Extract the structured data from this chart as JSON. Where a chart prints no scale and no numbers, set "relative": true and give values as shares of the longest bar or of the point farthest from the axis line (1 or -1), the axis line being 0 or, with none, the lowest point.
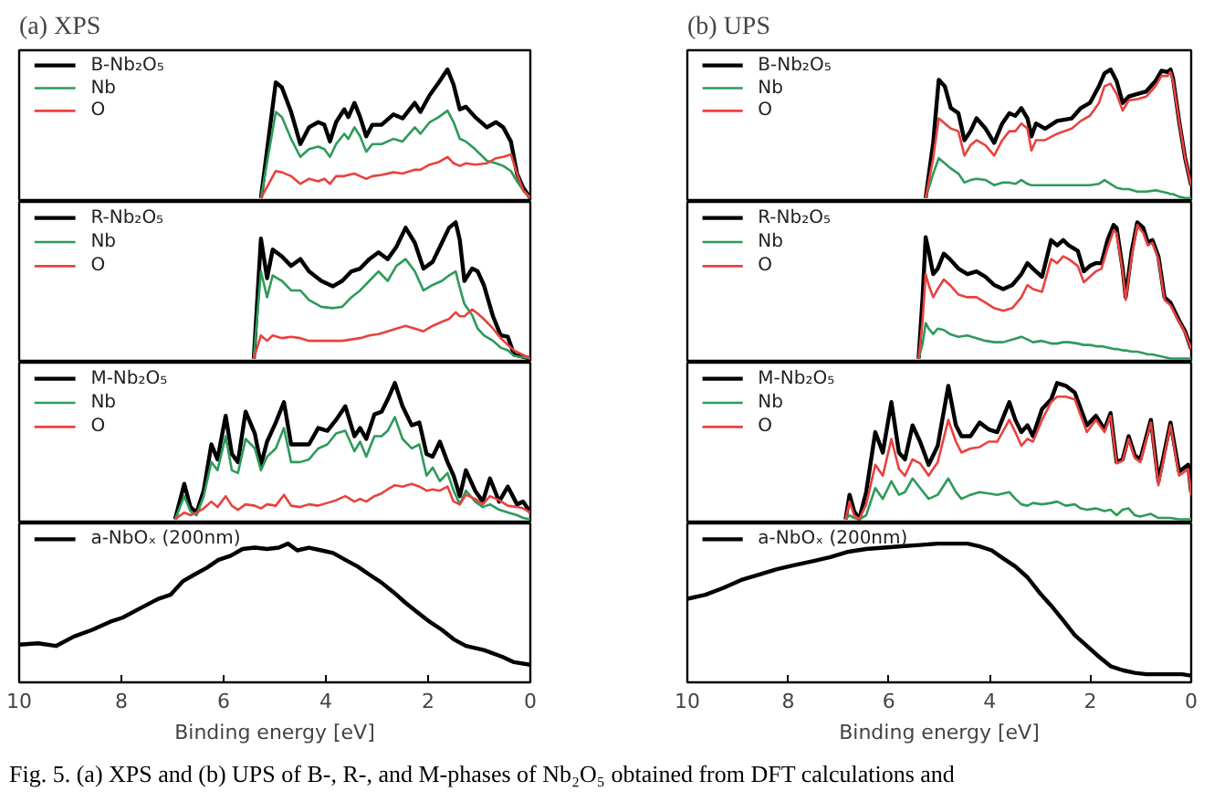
{
  "chart_data": [
    {
      "type": "line",
      "title": "(a) XPS",
      "relative": true,
      "xlim": [
        10,
        0
      ],
      "xticks": [
        0,
        2,
        4,
        6,
        8,
        10
      ],
      "tick_labels": false,
      "legend": "top left",
      "x": [
        5.27,
        4.98,
        4.86,
        4.68,
        4.5,
        4.33,
        4.15,
        4.03,
        3.92,
        3.8,
        3.64,
        3.56,
        3.44,
        3.33,
        3.21,
        3.09,
        2.91,
        2.68,
        2.5,
        2.26,
        2.15,
        1.97,
        1.79,
        1.62,
        1.5,
        1.38,
        1.26,
        1.08,
        0.85,
        0.67,
        0.53,
        0.38,
        0.26,
        0.14,
        0
      ],
      "series": [
        {
          "name": "B-Nb₂O₅",
          "color": "#000000",
          "values": [
            0,
            0.9,
            0.86,
            0.67,
            0.42,
            0.55,
            0.59,
            0.57,
            0.44,
            0.59,
            0.69,
            0.63,
            0.74,
            0.63,
            0.48,
            0.57,
            0.57,
            0.65,
            0.62,
            0.74,
            0.67,
            0.8,
            0.9,
            1,
            0.88,
            0.69,
            0.71,
            0.63,
            0.55,
            0.59,
            0.55,
            0.44,
            0.19,
            0.08,
            0
          ]
        },
        {
          "name": "Nb",
          "color": "#2e9a5a",
          "values": [
            0,
            0.67,
            0.63,
            0.46,
            0.32,
            0.38,
            0.4,
            0.38,
            0.32,
            0.42,
            0.5,
            0.46,
            0.55,
            0.48,
            0.36,
            0.42,
            0.42,
            0.46,
            0.44,
            0.55,
            0.5,
            0.59,
            0.63,
            0.68,
            0.59,
            0.46,
            0.44,
            0.38,
            0.29,
            0.27,
            0.25,
            0.21,
            0.13,
            0.06,
            0
          ]
        },
        {
          "name": "O",
          "color": "#e8423f",
          "values": [
            0,
            0.21,
            0.2,
            0.17,
            0.11,
            0.15,
            0.13,
            0.15,
            0.11,
            0.17,
            0.17,
            0.18,
            0.19,
            0.17,
            0.15,
            0.17,
            0.18,
            0.2,
            0.19,
            0.22,
            0.22,
            0.26,
            0.28,
            0.32,
            0.27,
            0.25,
            0.27,
            0.26,
            0.27,
            0.31,
            0.32,
            0.34,
            0.19,
            0.06,
            0
          ]
        }
      ]
    },
    {
      "type": "line",
      "title": "(b) UPS",
      "relative": true,
      "xlim": [
        10,
        0
      ],
      "xticks": [
        0,
        2,
        4,
        6,
        8,
        10
      ],
      "tick_labels": false,
      "legend": "top left",
      "x": [
        5.27,
        5.12,
        5.01,
        4.89,
        4.77,
        4.62,
        4.5,
        4.38,
        4.26,
        4.08,
        3.91,
        3.75,
        3.61,
        3.49,
        3.37,
        3.25,
        3.17,
        3.08,
        2.9,
        2.66,
        2.37,
        2.19,
        2.01,
        1.83,
        1.72,
        1.6,
        1.48,
        1.36,
        1.24,
        1.07,
        0.89,
        0.71,
        0.59,
        0.47,
        0.41,
        0.36,
        0.24,
        0.12,
        0
      ],
      "series": [
        {
          "name": "B-Nb₂O₅",
          "color": "#000000",
          "values": [
            0,
            0.43,
            0.92,
            0.87,
            0.7,
            0.66,
            0.45,
            0.52,
            0.62,
            0.54,
            0.43,
            0.58,
            0.66,
            0.64,
            0.7,
            0.62,
            0.48,
            0.58,
            0.54,
            0.6,
            0.62,
            0.7,
            0.74,
            0.87,
            0.97,
            1,
            0.91,
            0.74,
            0.79,
            0.81,
            0.83,
            0.91,
            0.99,
            0.98,
            1,
            0.93,
            0.6,
            0.31,
            0.1
          ]
        },
        {
          "name": "Nb",
          "color": "#2e9a5a",
          "values": [
            0,
            0.19,
            0.31,
            0.27,
            0.23,
            0.19,
            0.12,
            0.14,
            0.15,
            0.14,
            0.1,
            0.12,
            0.12,
            0.11,
            0.14,
            0.11,
            0.1,
            0.1,
            0.1,
            0.1,
            0.1,
            0.1,
            0.1,
            0.11,
            0.14,
            0.11,
            0.08,
            0.07,
            0.07,
            0.05,
            0.05,
            0.06,
            0.05,
            0.04,
            0.03,
            0.03,
            0.01,
            0,
            0
          ]
        },
        {
          "name": "O",
          "color": "#e8423f",
          "values": [
            0,
            0.31,
            0.62,
            0.58,
            0.54,
            0.52,
            0.33,
            0.41,
            0.45,
            0.41,
            0.33,
            0.45,
            0.52,
            0.52,
            0.58,
            0.54,
            0.37,
            0.45,
            0.45,
            0.5,
            0.54,
            0.6,
            0.64,
            0.74,
            0.87,
            0.89,
            0.81,
            0.68,
            0.76,
            0.77,
            0.79,
            0.87,
            0.95,
            0.95,
            0.98,
            0.91,
            0.6,
            0.31,
            0.1
          ]
        }
      ]
    },
    {
      "type": "line",
      "relative": true,
      "xlim": [
        10,
        0
      ],
      "xticks": [
        0,
        2,
        4,
        6,
        8,
        10
      ],
      "tick_labels": false,
      "legend": "top left",
      "x": [
        5.41,
        5.27,
        5.15,
        5.04,
        4.86,
        4.68,
        4.5,
        4.33,
        4.09,
        3.86,
        3.68,
        3.5,
        3.33,
        3.15,
        2.97,
        2.79,
        2.62,
        2.44,
        2.26,
        2.09,
        1.91,
        1.73,
        1.59,
        1.46,
        1.38,
        1.29,
        1.14,
        1.03,
        0.91,
        0.73,
        0.58,
        0.44,
        0.32,
        0
      ],
      "series": [
        {
          "name": "R-Nb₂O₅",
          "color": "#000000",
          "values": [
            0,
            0.88,
            0.59,
            0.8,
            0.75,
            0.68,
            0.73,
            0.64,
            0.57,
            0.53,
            0.57,
            0.64,
            0.66,
            0.73,
            0.78,
            0.73,
            0.82,
            0.96,
            0.85,
            0.66,
            0.71,
            0.85,
            0.96,
            1,
            0.87,
            0.57,
            0.66,
            0.64,
            0.54,
            0.31,
            0.17,
            0.16,
            0.03,
            0
          ]
        },
        {
          "name": "Nb",
          "color": "#2e9a5a",
          "values": [
            0,
            0.64,
            0.45,
            0.61,
            0.57,
            0.5,
            0.5,
            0.43,
            0.38,
            0.37,
            0.38,
            0.45,
            0.5,
            0.57,
            0.64,
            0.57,
            0.68,
            0.73,
            0.64,
            0.5,
            0.54,
            0.57,
            0.61,
            0.64,
            0.52,
            0.4,
            0.32,
            0.22,
            0.17,
            0.13,
            0.08,
            0.06,
            0.02,
            0
          ]
        },
        {
          "name": "O",
          "color": "#e8423f",
          "values": [
            0,
            0.17,
            0.13,
            0.17,
            0.15,
            0.16,
            0.15,
            0.13,
            0.13,
            0.13,
            0.13,
            0.14,
            0.15,
            0.17,
            0.18,
            0.2,
            0.22,
            0.24,
            0.22,
            0.2,
            0.24,
            0.27,
            0.29,
            0.34,
            0.31,
            0.31,
            0.36,
            0.33,
            0.29,
            0.22,
            0.15,
            0.1,
            0.06,
            0
          ]
        }
      ]
    },
    {
      "type": "line",
      "relative": true,
      "xlim": [
        10,
        0
      ],
      "xticks": [
        0,
        2,
        4,
        6,
        8,
        10
      ],
      "tick_labels": false,
      "legend": "top left",
      "x": [
        5.41,
        5.33,
        5.27,
        5.21,
        5.12,
        5.03,
        4.91,
        4.79,
        4.62,
        4.44,
        4.26,
        4.08,
        3.91,
        3.73,
        3.55,
        3.37,
        3.25,
        3.14,
        2.96,
        2.78,
        2.66,
        2.54,
        2.43,
        2.25,
        2.13,
        2.01,
        1.89,
        1.78,
        1.66,
        1.54,
        1.48,
        1.36,
        1.3,
        1.18,
        1.07,
        0.95,
        0.86,
        0.77,
        0.65,
        0.53,
        0.41,
        0.24,
        0.12,
        0
      ],
      "series": [
        {
          "name": "R-Nb₂O₅",
          "color": "#000000",
          "values": [
            0,
            0.45,
            0.89,
            0.79,
            0.62,
            0.66,
            0.77,
            0.73,
            0.66,
            0.62,
            0.64,
            0.6,
            0.54,
            0.51,
            0.54,
            0.62,
            0.7,
            0.66,
            0.6,
            0.87,
            0.83,
            0.87,
            0.83,
            0.79,
            0.64,
            0.68,
            0.7,
            0.7,
            0.87,
            0.98,
            0.96,
            0.66,
            0.45,
            0.79,
            1,
            0.96,
            0.85,
            0.87,
            0.75,
            0.45,
            0.41,
            0.28,
            0.2,
            0.07
          ]
        },
        {
          "name": "Nb",
          "color": "#2e9a5a",
          "values": [
            0,
            0.11,
            0.26,
            0.22,
            0.18,
            0.22,
            0.21,
            0.18,
            0.16,
            0.17,
            0.15,
            0.13,
            0.12,
            0.12,
            0.14,
            0.16,
            0.14,
            0.12,
            0.13,
            0.11,
            0.11,
            0.12,
            0.12,
            0.11,
            0.1,
            0.1,
            0.09,
            0.09,
            0.08,
            0.07,
            0.07,
            0.06,
            0.06,
            0.05,
            0.05,
            0.04,
            0.03,
            0.03,
            0.02,
            0.01,
            0,
            0,
            0,
            0
          ]
        },
        {
          "name": "O",
          "color": "#e8423f",
          "values": [
            0,
            0.28,
            0.62,
            0.54,
            0.45,
            0.51,
            0.58,
            0.54,
            0.47,
            0.45,
            0.45,
            0.41,
            0.37,
            0.35,
            0.37,
            0.45,
            0.54,
            0.51,
            0.49,
            0.73,
            0.7,
            0.75,
            0.73,
            0.68,
            0.56,
            0.6,
            0.64,
            0.66,
            0.81,
            0.94,
            0.92,
            0.64,
            0.43,
            0.75,
            0.98,
            0.92,
            0.83,
            0.85,
            0.73,
            0.43,
            0.39,
            0.27,
            0.19,
            0.07
          ]
        }
      ]
    },
    {
      "type": "line",
      "relative": true,
      "xlim": [
        10,
        0
      ],
      "xticks": [
        0,
        2,
        4,
        6,
        8,
        10
      ],
      "tick_labels": false,
      "legend": "top left",
      "x": [
        6.95,
        6.77,
        6.65,
        6.53,
        6.39,
        6.24,
        6.12,
        5.96,
        5.84,
        5.72,
        5.57,
        5.39,
        5.27,
        5.15,
        4.98,
        4.82,
        4.68,
        4.5,
        4.33,
        4.15,
        3.97,
        3.8,
        3.62,
        3.44,
        3.33,
        3.21,
        3.05,
        2.91,
        2.79,
        2.65,
        2.5,
        2.32,
        2.17,
        2.03,
        1.91,
        1.77,
        1.62,
        1.5,
        1.38,
        1.26,
        1.08,
        0.93,
        0.79,
        0.61,
        0.44,
        0.26,
        0.14,
        0
      ],
      "series": [
        {
          "name": "M-Nb₂O₅",
          "color": "#000000",
          "values": [
            0,
            0.26,
            0.09,
            0.05,
            0.21,
            0.55,
            0.44,
            0.76,
            0.48,
            0.42,
            0.79,
            0.63,
            0.4,
            0.57,
            0.71,
            0.86,
            0.55,
            0.55,
            0.55,
            0.67,
            0.65,
            0.73,
            0.83,
            0.61,
            0.67,
            0.59,
            0.77,
            0.79,
            0.88,
            1,
            0.83,
            0.69,
            0.71,
            0.48,
            0.46,
            0.57,
            0.42,
            0.32,
            0.17,
            0.36,
            0.21,
            0.13,
            0.3,
            0.13,
            0.24,
            0.11,
            0.13,
            0.05
          ]
        },
        {
          "name": "Nb",
          "color": "#2e9a5a",
          "values": [
            0,
            0.17,
            0.06,
            0.03,
            0.17,
            0.42,
            0.36,
            0.61,
            0.36,
            0.34,
            0.59,
            0.52,
            0.36,
            0.46,
            0.52,
            0.67,
            0.42,
            0.42,
            0.44,
            0.52,
            0.55,
            0.63,
            0.65,
            0.5,
            0.57,
            0.46,
            0.61,
            0.61,
            0.65,
            0.75,
            0.59,
            0.52,
            0.55,
            0.32,
            0.38,
            0.28,
            0.34,
            0.21,
            0.11,
            0.21,
            0.13,
            0.09,
            0.11,
            0.07,
            0.05,
            0.03,
            0.01,
            0
          ]
        },
        {
          "name": "O",
          "color": "#e8423f",
          "values": [
            0,
            0.05,
            0.03,
            0.05,
            0.08,
            0.13,
            0.09,
            0.17,
            0.1,
            0.07,
            0.11,
            0.1,
            0.08,
            0.11,
            0.1,
            0.18,
            0.1,
            0.09,
            0.11,
            0.1,
            0.12,
            0.14,
            0.17,
            0.13,
            0.15,
            0.13,
            0.17,
            0.19,
            0.22,
            0.25,
            0.24,
            0.26,
            0.24,
            0.21,
            0.22,
            0.21,
            0.24,
            0.13,
            0.11,
            0.18,
            0.15,
            0.11,
            0.17,
            0.14,
            0.1,
            0.09,
            0.08,
            0.05
          ]
        }
      ]
    },
    {
      "type": "line",
      "relative": true,
      "xlim": [
        10,
        0
      ],
      "xticks": [
        0,
        2,
        4,
        6,
        8,
        10
      ],
      "tick_labels": false,
      "legend": "top left",
      "x": [
        6.86,
        6.78,
        6.69,
        6.59,
        6.45,
        6.27,
        6.12,
        5.95,
        5.8,
        5.68,
        5.53,
        5.38,
        5.21,
        5.03,
        4.82,
        4.67,
        4.56,
        4.38,
        4.2,
        4.02,
        3.85,
        3.61,
        3.49,
        3.37,
        3.25,
        3.14,
        2.96,
        2.78,
        2.66,
        2.49,
        2.31,
        2.19,
        2.07,
        1.89,
        1.72,
        1.6,
        1.48,
        1.36,
        1.24,
        1.12,
        1.01,
        0.8,
        0.65,
        0.41,
        0.24,
        0.06,
        0
      ],
      "series": [
        {
          "name": "M-Nb₂O₅",
          "color": "#000000",
          "values": [
            0,
            0.18,
            0.06,
            0,
            0.2,
            0.64,
            0.49,
            0.86,
            0.49,
            0.44,
            0.69,
            0.57,
            0.4,
            0.54,
            0.98,
            0.69,
            0.61,
            0.61,
            0.71,
            0.66,
            0.64,
            0.86,
            0.73,
            0.64,
            0.69,
            0.61,
            0.81,
            0.88,
            1,
            0.98,
            0.93,
            0.81,
            0.69,
            0.76,
            0.66,
            0.78,
            0.42,
            0.44,
            0.61,
            0.47,
            0.44,
            0.73,
            0.28,
            0.71,
            0.35,
            0.4,
            0.2
          ]
        },
        {
          "name": "Nb",
          "color": "#2e9a5a",
          "values": [
            0,
            0.03,
            0.01,
            0,
            0.03,
            0.23,
            0.15,
            0.28,
            0.18,
            0.2,
            0.3,
            0.23,
            0.15,
            0.18,
            0.3,
            0.2,
            0.15,
            0.18,
            0.2,
            0.19,
            0.18,
            0.2,
            0.15,
            0.11,
            0.1,
            0.12,
            0.11,
            0.12,
            0.13,
            0.1,
            0.11,
            0.08,
            0.07,
            0.08,
            0.06,
            0.07,
            0.03,
            0.07,
            0.08,
            0.03,
            0.02,
            0.04,
            0.01,
            0.01,
            0,
            0,
            0
          ]
        },
        {
          "name": "O",
          "color": "#e8423f",
          "values": [
            0,
            0.13,
            0.03,
            0,
            0.11,
            0.4,
            0.32,
            0.59,
            0.37,
            0.32,
            0.44,
            0.41,
            0.32,
            0.42,
            0.73,
            0.57,
            0.49,
            0.52,
            0.53,
            0.57,
            0.57,
            0.73,
            0.64,
            0.54,
            0.59,
            0.57,
            0.73,
            0.86,
            0.9,
            0.9,
            0.88,
            0.76,
            0.64,
            0.73,
            0.64,
            0.76,
            0.41,
            0.43,
            0.59,
            0.45,
            0.42,
            0.71,
            0.25,
            0.69,
            0.32,
            0.37,
            0.18
          ]
        }
      ]
    },
    {
      "type": "line",
      "xlabel": "Binding energy [eV]",
      "relative": true,
      "xlim": [
        10,
        0
      ],
      "xticks": [
        0,
        2,
        4,
        6,
        8,
        10
      ],
      "tick_labels": "x",
      "legend": "top left",
      "x": [
        10,
        9.63,
        9.28,
        8.93,
        8.57,
        8.22,
        7.98,
        7.63,
        7.28,
        7.04,
        6.8,
        6.57,
        6.33,
        6.1,
        5.86,
        5.63,
        5.39,
        5.15,
        4.92,
        4.74,
        4.56,
        4.33,
        4.09,
        3.86,
        3.62,
        3.38,
        3.15,
        2.91,
        2.68,
        2.44,
        2.21,
        1.97,
        1.73,
        1.5,
        1.26,
        0.91,
        0.55,
        0.32,
        0
      ],
      "series": [
        {
          "name": "a-NbOₓ  (200nm)",
          "color": "#000000",
          "values": [
            0.25,
            0.26,
            0.24,
            0.31,
            0.36,
            0.42,
            0.45,
            0.52,
            0.59,
            0.62,
            0.72,
            0.77,
            0.82,
            0.88,
            0.91,
            0.96,
            0.97,
            0.96,
            0.97,
            1,
            0.95,
            0.97,
            0.95,
            0.93,
            0.88,
            0.83,
            0.77,
            0.71,
            0.64,
            0.56,
            0.49,
            0.42,
            0.36,
            0.29,
            0.24,
            0.21,
            0.16,
            0.12,
            0.1
          ]
        }
      ]
    },
    {
      "type": "line",
      "xlabel": "Binding energy [eV]",
      "relative": true,
      "xlim": [
        10,
        0
      ],
      "xticks": [
        0,
        2,
        4,
        6,
        8,
        10
      ],
      "tick_labels": "x",
      "legend": "top left",
      "annotations": [
        "Fig. 5. (a) XPS and (b) UPS of B-, R-, and M-phases of Nb₂O₅ obtained from DFT calculations and"
      ],
      "x": [
        10,
        9.64,
        9.29,
        8.93,
        8.58,
        8.22,
        7.87,
        7.51,
        7.16,
        6.8,
        6.45,
        6.09,
        5.74,
        5.38,
        5.03,
        4.67,
        4.44,
        4.2,
        3.96,
        3.73,
        3.49,
        3.25,
        3.02,
        2.78,
        2.54,
        2.31,
        2.07,
        1.83,
        1.6,
        1.36,
        1.12,
        0.89,
        0.53,
        0.18,
        0
      ],
      "series": [
        {
          "name": "a-NbOₓ  (200nm)",
          "color": "#000000",
          "values": [
            0.59,
            0.62,
            0.67,
            0.73,
            0.77,
            0.81,
            0.84,
            0.87,
            0.9,
            0.94,
            0.96,
            0.97,
            0.98,
            0.99,
            1,
            1,
            1,
            0.98,
            0.95,
            0.89,
            0.83,
            0.75,
            0.64,
            0.54,
            0.43,
            0.32,
            0.24,
            0.16,
            0.09,
            0.06,
            0.04,
            0.03,
            0.03,
            0.03,
            0.02
          ]
        }
      ]
    }
  ]
}
